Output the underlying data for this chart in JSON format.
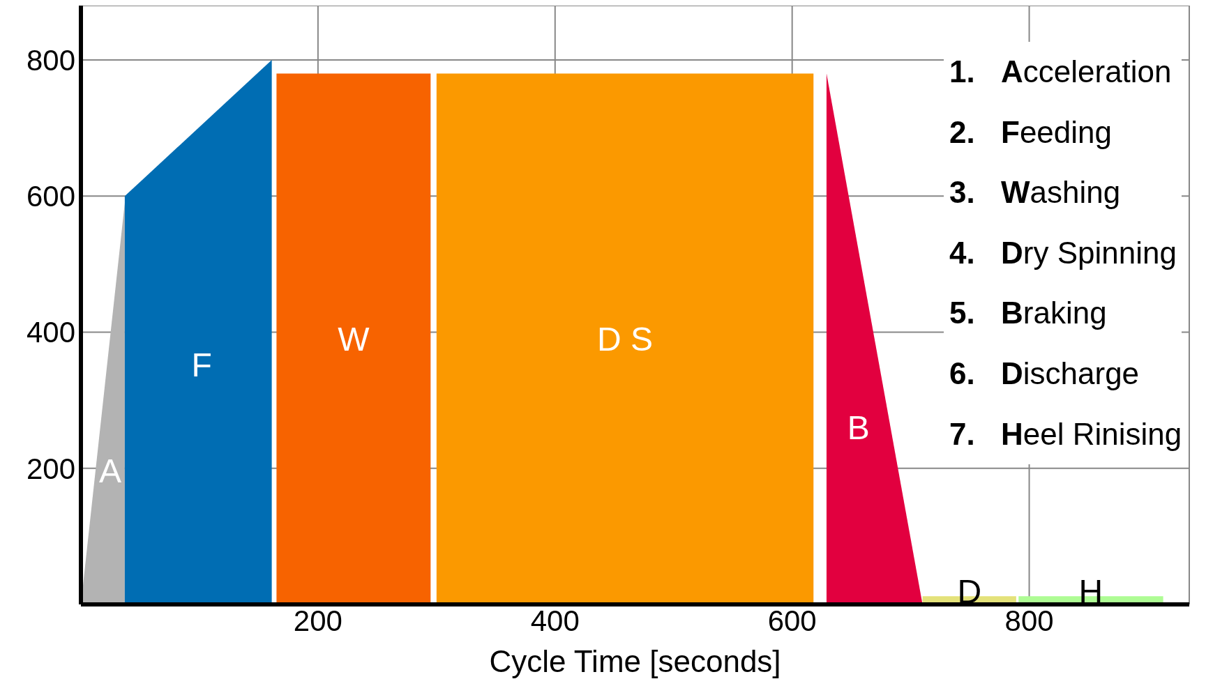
{
  "chart_data": {
    "type": "area",
    "xlabel": "Cycle Time [seconds]",
    "xlim": [
      0,
      935
    ],
    "xticks": [
      200,
      400,
      600,
      800
    ],
    "ylim": [
      0,
      880
    ],
    "yticks": [
      200,
      400,
      600,
      800
    ],
    "grid": true,
    "legend": false,
    "series": [
      {
        "name": "A",
        "color": "#b3b3b3",
        "x": [
          0,
          37
        ],
        "values": [
          0,
          590
        ]
      },
      {
        "name": "F",
        "color": "#006db3",
        "x": [
          37,
          161
        ],
        "values": [
          600,
          800
        ]
      },
      {
        "name": "W",
        "color": "#f76300",
        "x": [
          165,
          295
        ],
        "values": [
          780,
          780
        ]
      },
      {
        "name": "D S",
        "color": "#fb9900",
        "x": [
          300,
          618
        ],
        "values": [
          780,
          780
        ]
      },
      {
        "name": "B",
        "color": "#e2003f",
        "x": [
          629,
          710
        ],
        "values": [
          780,
          0
        ]
      },
      {
        "name": "D",
        "color": "#e4e27a",
        "x": [
          710,
          789
        ],
        "values": [
          12,
          12
        ]
      },
      {
        "name": "H",
        "color": "#aefc94",
        "x": [
          791,
          913
        ],
        "values": [
          12,
          12
        ]
      }
    ],
    "annotations": [
      "1. Acceleration",
      "2. Feeding",
      "3. Washing",
      "4. Dry Spinning",
      "5. Braking",
      "6. Discharge",
      "7. Heel Rinising"
    ]
  }
}
